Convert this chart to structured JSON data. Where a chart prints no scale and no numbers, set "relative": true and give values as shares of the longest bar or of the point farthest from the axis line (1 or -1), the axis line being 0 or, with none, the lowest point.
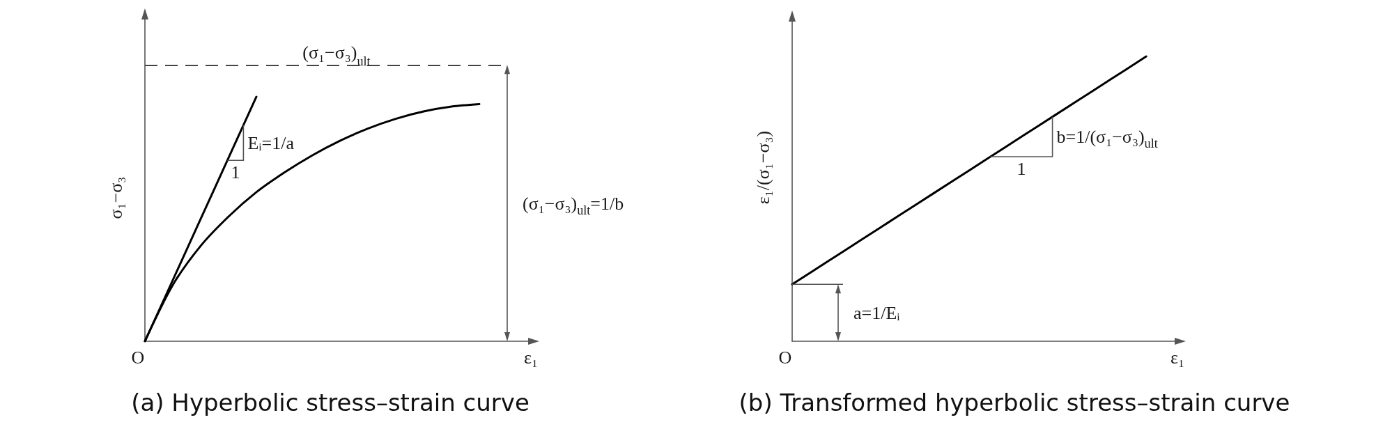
{
  "chart_data": [
    {
      "type": "line",
      "title": "(a) Hyperbolic stress–strain curve",
      "xlabel": "ε₁",
      "ylabel": "σ₁−σ₃",
      "relative": true,
      "categories": [
        null,
        null,
        null,
        null,
        null,
        null,
        null,
        null,
        null,
        null,
        null,
        null,
        null,
        null,
        null
      ],
      "series": [
        {
          "color": "#000000",
          "values": [
            0,
            0.23,
            0.39,
            0.51,
            0.61,
            0.69,
            0.76,
            0.82,
            0.87,
            0.91,
            0.94,
            0.96,
            0.97,
            null,
            null
          ]
        },
        {
          "color": "#000000",
          "values": [
            0,
            0.25,
            0.5,
            0.75,
            1,
            null,
            null,
            null,
            null,
            null,
            null,
            null,
            null,
            null,
            null
          ]
        }
      ],
      "ref_lines": [
        {
          "axis": "y",
          "value": 1.13,
          "label": "(σ₁−σ₃)$_{ult}$",
          "color": "#444444",
          "line_style": "dashed"
        }
      ],
      "annotations": [
        "O",
        "Eᵢ=1/a",
        "1",
        "(σ₁−σ₃)$_{ult}$=1/b"
      ]
    },
    {
      "type": "line",
      "title": "(b) Transformed hyperbolic stress–strain curve",
      "xlabel": "ε₁",
      "ylabel": "ε₁/(σ₁−σ₃)",
      "relative": true,
      "categories": [
        null,
        null,
        null,
        null,
        null,
        null,
        null,
        null,
        null,
        null,
        null,
        null
      ],
      "series": [
        {
          "color": "#000000",
          "values": [
            0.2,
            0.28,
            0.36,
            0.44,
            0.52,
            0.6,
            0.68,
            0.76,
            0.84,
            0.92,
            1,
            null
          ]
        }
      ],
      "annotations": [
        "O",
        "1",
        "b=1/(σ₁−σ₃)$_{ult}$",
        "a=1/Eᵢ"
      ]
    }
  ]
}
